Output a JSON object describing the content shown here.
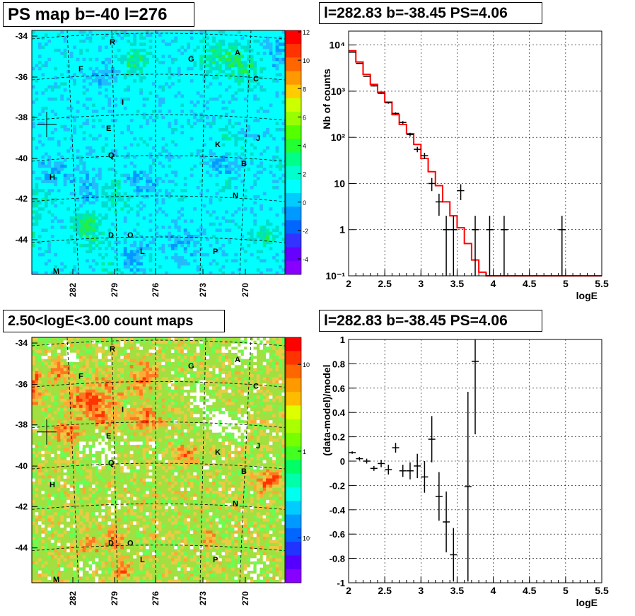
{
  "panels": {
    "ps_map": {
      "title": "PS map b=-40 l=276"
    },
    "spectrum": {
      "title": "l=282.83 b=-38.45 PS=4.06"
    },
    "count_map": {
      "title": "2.50<logE<3.00 count maps"
    },
    "residual": {
      "title": "l=282.83 b=-38.45 PS=4.06"
    }
  },
  "chart_data": [
    {
      "type": "heatmap",
      "title": "PS map b=-40 l=276",
      "y_ticks": [
        "-34",
        "-36",
        "-38",
        "-40",
        "-42",
        "-44"
      ],
      "x_ticks": [
        "282",
        "279",
        "276",
        "273",
        "270"
      ],
      "colorbar_ticks": [
        "12",
        "10",
        "8",
        "6",
        "4",
        "2",
        "0",
        "-2",
        "-4"
      ],
      "colorbar_range": [
        -5,
        12
      ],
      "base_color": "#00ffff",
      "labels": [
        "R",
        "G",
        "A",
        "F",
        "C",
        "I",
        "E",
        "J",
        "K",
        "Q",
        "B",
        "H",
        "N",
        "D",
        "O",
        "L",
        "P",
        "M"
      ],
      "marker": "cross"
    },
    {
      "type": "line",
      "title": "l=282.83 b=-38.45 PS=4.06",
      "xlabel": "logE",
      "ylabel": "Nb of counts",
      "xlim": [
        2,
        5.5
      ],
      "ylim": [
        0.1,
        20000
      ],
      "log_y": true,
      "x_ticks": [
        "2",
        "2.5",
        "3",
        "3.5",
        "4",
        "4.5",
        "5",
        "5.5"
      ],
      "y_ticks": [
        "10^-1",
        "1",
        "10",
        "10^2",
        "10^3",
        "10^4"
      ],
      "grid": true,
      "series": [
        {
          "kind": "data",
          "x": [
            2.05,
            2.15,
            2.25,
            2.35,
            2.45,
            2.55,
            2.65,
            2.75,
            2.85,
            2.95,
            3.05,
            3.15,
            3.25,
            3.35,
            3.45,
            3.55,
            3.75,
            3.95,
            4.15,
            4.95
          ],
          "values": [
            7000,
            4000,
            2100,
            1300,
            900,
            560,
            330,
            210,
            115,
            55,
            40,
            10,
            4,
            1,
            1,
            7,
            1,
            1,
            1,
            1
          ]
        },
        {
          "kind": "model",
          "color": "#ff0000",
          "x": [
            2.05,
            2.15,
            2.25,
            2.35,
            2.45,
            2.55,
            2.65,
            2.75,
            2.85,
            2.95,
            3.05,
            3.15,
            3.25,
            3.35,
            3.45,
            3.55,
            3.65,
            3.75,
            3.85,
            3.95,
            4.05,
            5.5
          ],
          "values": [
            7500,
            4300,
            2300,
            1400,
            950,
            580,
            310,
            190,
            120,
            70,
            35,
            18,
            9,
            4,
            2,
            1.1,
            0.5,
            0.22,
            0.12,
            0.1,
            0.1,
            0.1
          ]
        }
      ]
    },
    {
      "type": "heatmap",
      "title": "2.50<logE<3.00 count maps",
      "y_ticks": [
        "-34",
        "-36",
        "-38",
        "-40",
        "-42",
        "-44"
      ],
      "x_ticks": [
        "282",
        "279",
        "276",
        "273",
        "270"
      ],
      "colorbar_ticks": [
        "10",
        "1",
        "10^-1"
      ],
      "colorbar_log": true,
      "base_color": "#a0e040",
      "labels": [
        "R",
        "G",
        "A",
        "F",
        "C",
        "I",
        "E",
        "J",
        "K",
        "Q",
        "B",
        "H",
        "N",
        "D",
        "O",
        "L",
        "P",
        "M"
      ],
      "marker": "cross"
    },
    {
      "type": "scatter",
      "title": "l=282.83 b=-38.45 PS=4.06",
      "xlabel": "logE",
      "ylabel": "(data-model)/model",
      "xlim": [
        2,
        5.5
      ],
      "ylim": [
        -1,
        1
      ],
      "x_ticks": [
        "2",
        "2.5",
        "3",
        "3.5",
        "4",
        "4.5",
        "5",
        "5.5"
      ],
      "y_ticks": [
        "-1",
        "-0.8",
        "-0.6",
        "-0.4",
        "-0.2",
        "0",
        "0.2",
        "0.4",
        "0.6",
        "0.8",
        "1"
      ],
      "grid": true,
      "x": [
        2.05,
        2.15,
        2.25,
        2.35,
        2.45,
        2.55,
        2.65,
        2.75,
        2.85,
        2.95,
        3.05,
        3.15,
        3.25,
        3.35,
        3.45,
        3.65,
        3.75
      ],
      "values": [
        0.07,
        0.02,
        0.0,
        -0.06,
        -0.02,
        -0.07,
        0.11,
        -0.08,
        -0.08,
        -0.04,
        -0.13,
        0.18,
        -0.29,
        -0.5,
        -0.77,
        -0.21,
        0.82
      ],
      "errors": [
        0.01,
        0.015,
        0.02,
        0.02,
        0.03,
        0.04,
        0.04,
        0.05,
        0.07,
        0.1,
        0.13,
        0.19,
        0.2,
        0.25,
        0.22,
        0.78,
        0.6
      ]
    }
  ]
}
